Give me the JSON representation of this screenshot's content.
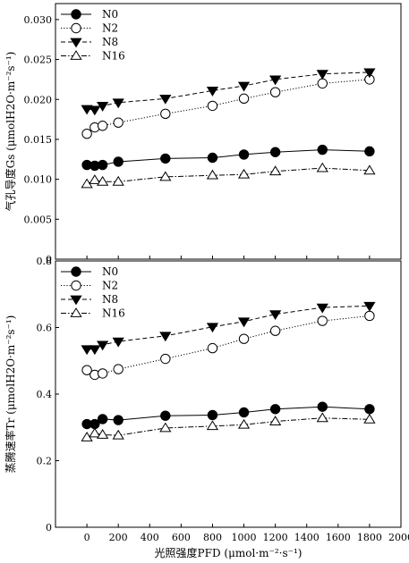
{
  "chart_data": [
    {
      "type": "line",
      "ylabel": "气孔导度Gs (μmolH2O·m⁻²s⁻¹)",
      "ylim": [
        0,
        0.032
      ],
      "yticks": [
        "0",
        "0.005",
        "0.010",
        "0.015",
        "0.020",
        "0.025",
        "0.030"
      ],
      "x": [
        0,
        50,
        100,
        200,
        500,
        800,
        1000,
        1200,
        1500,
        1800
      ],
      "legend_position": "top-left",
      "series": [
        {
          "name": "N0",
          "marker": "circle-filled",
          "line": "solid",
          "values": [
            0.0118,
            0.0117,
            0.0118,
            0.0122,
            0.0126,
            0.0127,
            0.0131,
            0.0134,
            0.0137,
            0.0135
          ]
        },
        {
          "name": "N2",
          "marker": "circle-open",
          "line": "dotted",
          "values": [
            0.0157,
            0.0165,
            0.0167,
            0.0171,
            0.0182,
            0.0192,
            0.0201,
            0.0209,
            0.022,
            0.0225
          ]
        },
        {
          "name": "N8",
          "marker": "triangle-down-filled",
          "line": "dashed",
          "values": [
            0.0188,
            0.0187,
            0.0192,
            0.0196,
            0.0201,
            0.0211,
            0.0217,
            0.0225,
            0.0232,
            0.0234
          ]
        },
        {
          "name": "N16",
          "marker": "triangle-up-open",
          "line": "dashdot",
          "values": [
            0.0094,
            0.0099,
            0.0097,
            0.0097,
            0.0103,
            0.0105,
            0.0106,
            0.011,
            0.0114,
            0.0111
          ]
        }
      ]
    },
    {
      "type": "line",
      "ylabel": "蒸腾速率Tr (μmolH2O·m⁻²s⁻¹)",
      "xlabel": "光照强度PFD (μmol·m⁻²·s⁻¹)",
      "ylim": [
        0,
        0.8
      ],
      "xlim": [
        -200,
        2000
      ],
      "yticks": [
        "0",
        "0.2",
        "0.4",
        "0.6",
        "0.8"
      ],
      "xticks": [
        "0",
        "200",
        "400",
        "600",
        "800",
        "1000",
        "1200",
        "1400",
        "1600",
        "1800",
        "2000"
      ],
      "x": [
        0,
        50,
        100,
        200,
        500,
        800,
        1000,
        1200,
        1500,
        1800
      ],
      "legend_position": "top-left",
      "series": [
        {
          "name": "N0",
          "marker": "circle-filled",
          "line": "solid",
          "values": [
            0.31,
            0.31,
            0.325,
            0.322,
            0.335,
            0.337,
            0.345,
            0.355,
            0.362,
            0.355
          ]
        },
        {
          "name": "N2",
          "marker": "circle-open",
          "line": "dotted",
          "values": [
            0.472,
            0.458,
            0.462,
            0.475,
            0.506,
            0.538,
            0.566,
            0.59,
            0.62,
            0.635
          ]
        },
        {
          "name": "N8",
          "marker": "triangle-down-filled",
          "line": "dashed",
          "values": [
            0.535,
            0.535,
            0.548,
            0.558,
            0.575,
            0.602,
            0.618,
            0.64,
            0.66,
            0.665
          ]
        },
        {
          "name": "N16",
          "marker": "triangle-up-open",
          "line": "dashdot",
          "values": [
            0.27,
            0.282,
            0.278,
            0.276,
            0.298,
            0.304,
            0.308,
            0.318,
            0.328,
            0.324
          ]
        }
      ]
    }
  ]
}
